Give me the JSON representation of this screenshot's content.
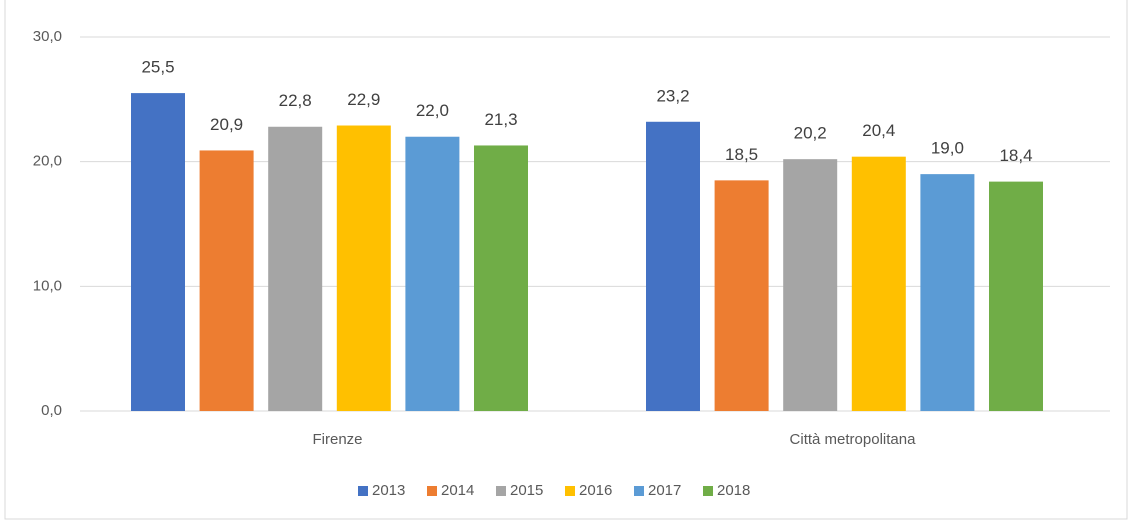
{
  "chart_data": {
    "type": "bar",
    "categories": [
      "Firenze",
      "Città metropolitana"
    ],
    "series": [
      {
        "name": "2013",
        "color": "#4472c4",
        "values": [
          25.5,
          23.2
        ],
        "value_labels": [
          "25,5",
          "23,2"
        ]
      },
      {
        "name": "2014",
        "color": "#ed7d31",
        "values": [
          20.9,
          18.5
        ],
        "value_labels": [
          "20,9",
          "18,5"
        ]
      },
      {
        "name": "2015",
        "color": "#a5a5a5",
        "values": [
          22.8,
          20.2
        ],
        "value_labels": [
          "22,8",
          "20,2"
        ]
      },
      {
        "name": "2016",
        "color": "#ffc000",
        "values": [
          22.9,
          20.4
        ],
        "value_labels": [
          "22,9",
          "20,4"
        ]
      },
      {
        "name": "2017",
        "color": "#5b9bd5",
        "values": [
          22.0,
          19.0
        ],
        "value_labels": [
          "22,0",
          "19,0"
        ]
      },
      {
        "name": "2018",
        "color": "#70ad47",
        "values": [
          21.3,
          18.4
        ],
        "value_labels": [
          "21,3",
          "18,4"
        ]
      }
    ],
    "ylim": [
      0,
      30
    ],
    "yticks": [
      {
        "value": 0,
        "label": "0,0"
      },
      {
        "value": 10,
        "label": "10,0"
      },
      {
        "value": 20,
        "label": "20,0"
      },
      {
        "value": 30,
        "label": "30,0"
      }
    ],
    "grid": true,
    "legend": "bottom"
  }
}
